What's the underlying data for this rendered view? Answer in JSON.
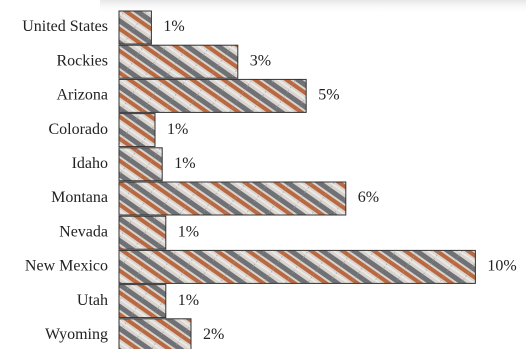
{
  "chart_data": {
    "type": "bar",
    "orientation": "horizontal",
    "categories": [
      "United States",
      "Rockies",
      "Arizona",
      "Colorado",
      "Idaho",
      "Montana",
      "Nevada",
      "New Mexico",
      "Utah",
      "Wyoming"
    ],
    "values": [
      0.9,
      3.3,
      5.2,
      1.0,
      1.2,
      6.3,
      1.3,
      9.9,
      1.3,
      2.0
    ],
    "value_labels": [
      "1%",
      "3%",
      "5%",
      "1%",
      "1%",
      "6%",
      "1%",
      "10%",
      "1%",
      "2%"
    ]
  }
}
